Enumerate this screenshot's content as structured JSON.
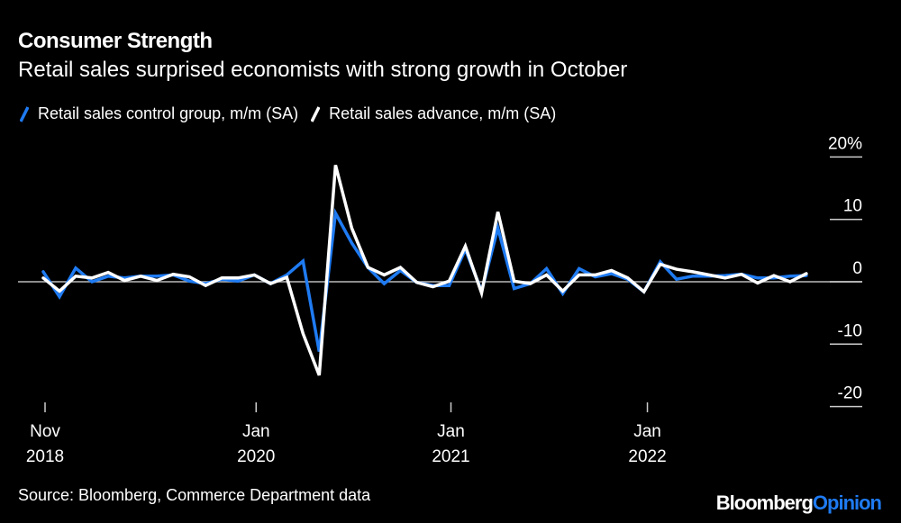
{
  "title": "Consumer Strength",
  "subtitle": "Retail sales surprised economists with strong growth in October",
  "source": "Source: Bloomberg, Commerce Department data",
  "logo": {
    "brand": "Bloomberg",
    "suffix": "Opinion"
  },
  "colors": {
    "control": "#1f7bf2",
    "advance": "#ffffff",
    "zero_line": "#bbbbbb",
    "background": "#000000"
  },
  "chart_data": {
    "type": "line",
    "x_start": "Nov 2018",
    "x_end": "Oct 2022",
    "frequency": "monthly",
    "x_ticks": [
      {
        "line1": "Nov",
        "line2": "2018",
        "index": 0
      },
      {
        "line1": "Jan",
        "line2": "2020",
        "index": 13
      },
      {
        "line1": "Jan",
        "line2": "2021",
        "index": 25
      },
      {
        "line1": "Jan",
        "line2": "2022",
        "index": 37.1
      }
    ],
    "ylim": [
      -20,
      20
    ],
    "y_ticks": [
      {
        "value": 20,
        "label": "20%"
      },
      {
        "value": 10,
        "label": "10"
      },
      {
        "value": 0,
        "label": "0"
      },
      {
        "value": -10,
        "label": "-10"
      },
      {
        "value": -20,
        "label": "-20"
      }
    ],
    "legend_position": "top-left",
    "series": [
      {
        "name": "Retail sales control group, m/m (SA)",
        "color": "#1f7bf2",
        "values": [
          1.6,
          -2.4,
          2.2,
          0,
          0.9,
          0.6,
          0.9,
          0.9,
          1.1,
          0.1,
          -0.3,
          0.4,
          0.1,
          1.1,
          -0.3,
          1.1,
          3.3,
          -11.2,
          11.0,
          6.2,
          2.3,
          -0.3,
          1.8,
          -0.1,
          -0.6,
          -0.6,
          5.2,
          -1.5,
          8.6,
          -1.1,
          -0.3,
          2.1,
          -1.9,
          2.1,
          0.8,
          1.3,
          0.4,
          -1.6,
          3.2,
          0.4,
          0.9,
          0.9,
          1.0,
          1.2,
          0.6,
          0.6,
          0.9,
          1.0
        ]
      },
      {
        "name": "Retail sales advance, m/m (SA)",
        "color": "#ffffff",
        "values": [
          0.6,
          -1.5,
          0.9,
          0.6,
          1.5,
          0.2,
          0.9,
          0.2,
          1.2,
          0.8,
          -0.6,
          0.6,
          0.6,
          1.1,
          -0.3,
          0.7,
          -8.3,
          -15.0,
          18.7,
          8.6,
          2.3,
          1.1,
          2.3,
          -0.1,
          -0.8,
          0.1,
          5.7,
          -1.8,
          11.2,
          0.1,
          -0.3,
          1.1,
          -1.5,
          1.1,
          1.1,
          1.8,
          0.6,
          -1.6,
          2.8,
          2.0,
          1.6,
          1.1,
          0.6,
          1.2,
          -0.2,
          1.0,
          0,
          1.3
        ]
      }
    ]
  }
}
